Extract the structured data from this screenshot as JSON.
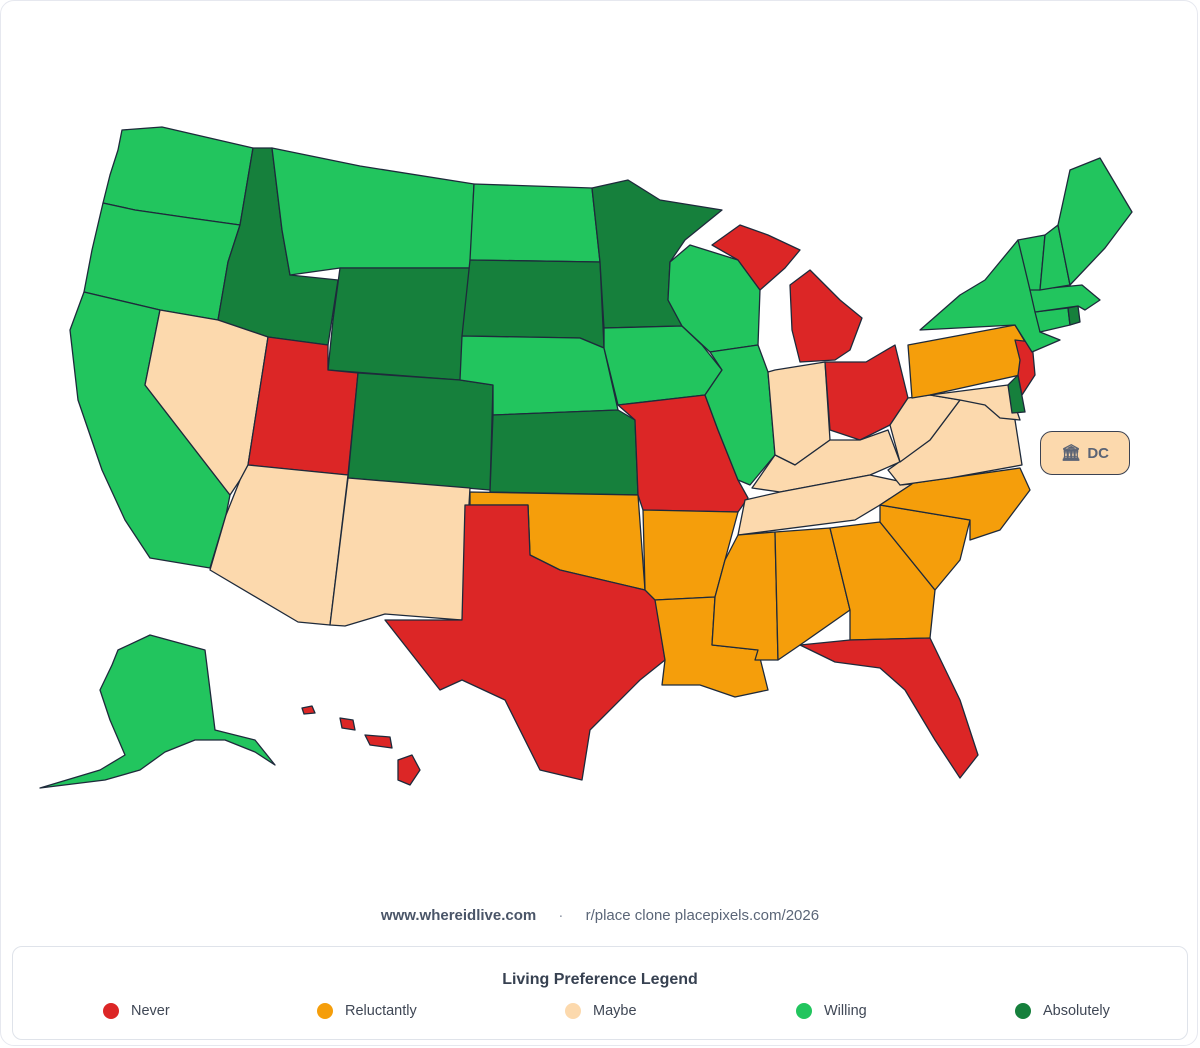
{
  "colors": {
    "never": "#dc2626",
    "reluctantly": "#f59e0b",
    "maybe": "#fcd9ad",
    "willing": "#22c55e",
    "absolutely": "#16803c"
  },
  "states": {
    "WA": "willing",
    "OR": "willing",
    "CA": "willing",
    "NV": "maybe",
    "ID": "absolutely",
    "MT": "willing",
    "WY": "absolutely",
    "UT": "never",
    "AZ": "maybe",
    "NM": "maybe",
    "CO": "absolutely",
    "ND": "willing",
    "SD": "absolutely",
    "NE": "willing",
    "KS": "absolutely",
    "OK": "reluctantly",
    "TX": "never",
    "MN": "absolutely",
    "IA": "willing",
    "MO": "never",
    "AR": "reluctantly",
    "LA": "reluctantly",
    "WI": "willing",
    "IL": "willing",
    "MI": "never",
    "IN": "maybe",
    "OH": "never",
    "KY": "maybe",
    "TN": "maybe",
    "MS": "reluctantly",
    "AL": "reluctantly",
    "GA": "reluctantly",
    "FL": "never",
    "SC": "reluctantly",
    "NC": "reluctantly",
    "VA": "maybe",
    "WV": "maybe",
    "MD": "maybe",
    "DE": "absolutely",
    "PA": "reluctantly",
    "NJ": "never",
    "NY": "willing",
    "CT": "willing",
    "RI": "absolutely",
    "MA": "willing",
    "VT": "willing",
    "NH": "willing",
    "ME": "willing",
    "AK": "willing",
    "HI": "never"
  },
  "dc_badge": {
    "icon": "🏛",
    "label": "DC",
    "status": "maybe"
  },
  "footer": {
    "site": "www.whereidlive.com",
    "separator": "·",
    "clone": "r/place clone placepixels.com/2026"
  },
  "legend": {
    "title": "Living Preference Legend",
    "items": [
      {
        "key": "never",
        "label": "Never"
      },
      {
        "key": "reluctantly",
        "label": "Reluctantly"
      },
      {
        "key": "maybe",
        "label": "Maybe"
      },
      {
        "key": "willing",
        "label": "Willing"
      },
      {
        "key": "absolutely",
        "label": "Absolutely"
      }
    ]
  }
}
